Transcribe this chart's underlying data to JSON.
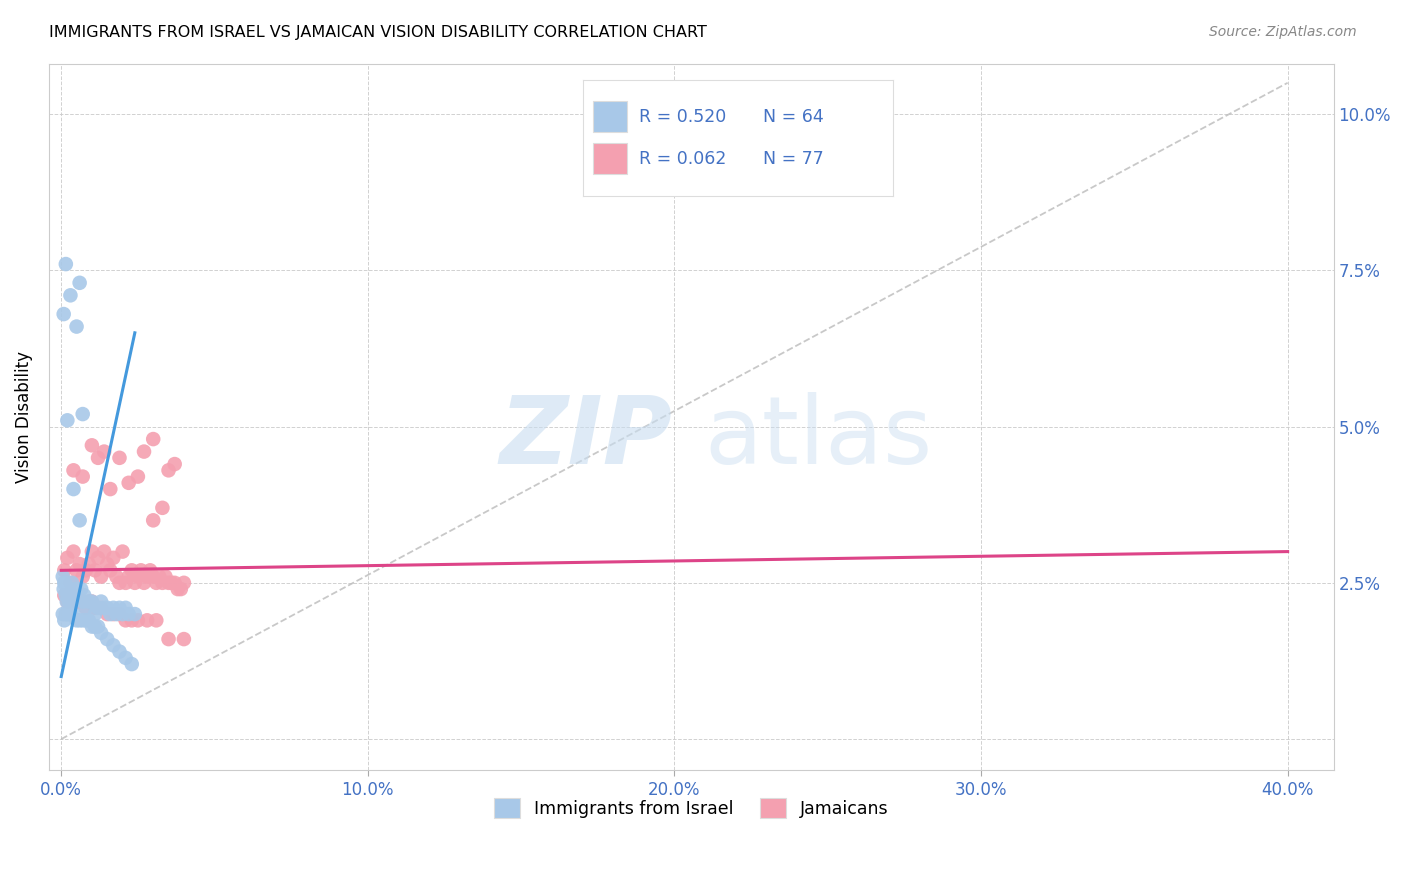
{
  "title": "IMMIGRANTS FROM ISRAEL VS JAMAICAN VISION DISABILITY CORRELATION CHART",
  "source": "Source: ZipAtlas.com",
  "ylabel": "Vision Disability",
  "ytick_vals": [
    0.0,
    0.025,
    0.05,
    0.075,
    0.1
  ],
  "xtick_vals": [
    0.0,
    0.1,
    0.2,
    0.3,
    0.4
  ],
  "xlim": [
    -0.004,
    0.415
  ],
  "ylim": [
    -0.005,
    0.108
  ],
  "blue_R": "0.520",
  "blue_N": "64",
  "pink_R": "0.062",
  "pink_N": "77",
  "blue_color": "#a8c8e8",
  "pink_color": "#f4a0b0",
  "blue_line_color": "#4499dd",
  "pink_line_color": "#dd4488",
  "dashed_line_color": "#bbbbbb",
  "legend_label_blue": "Immigrants from Israel",
  "legend_label_pink": "Jamaicans",
  "watermark_zip": "ZIP",
  "watermark_atlas": "atlas",
  "blue_scatter": [
    [
      0.0005,
      0.026
    ],
    [
      0.0008,
      0.024
    ],
    [
      0.001,
      0.025
    ],
    [
      0.0012,
      0.025
    ],
    [
      0.0015,
      0.023
    ],
    [
      0.0018,
      0.022
    ],
    [
      0.002,
      0.024
    ],
    [
      0.0022,
      0.023
    ],
    [
      0.0025,
      0.022
    ],
    [
      0.003,
      0.024
    ],
    [
      0.0032,
      0.023
    ],
    [
      0.0035,
      0.025
    ],
    [
      0.004,
      0.023
    ],
    [
      0.0042,
      0.022
    ],
    [
      0.005,
      0.024
    ],
    [
      0.0055,
      0.023
    ],
    [
      0.006,
      0.035
    ],
    [
      0.0065,
      0.024
    ],
    [
      0.007,
      0.022
    ],
    [
      0.0075,
      0.023
    ],
    [
      0.008,
      0.021
    ],
    [
      0.009,
      0.022
    ],
    [
      0.01,
      0.022
    ],
    [
      0.011,
      0.02
    ],
    [
      0.012,
      0.021
    ],
    [
      0.013,
      0.022
    ],
    [
      0.014,
      0.021
    ],
    [
      0.015,
      0.021
    ],
    [
      0.016,
      0.02
    ],
    [
      0.017,
      0.021
    ],
    [
      0.018,
      0.02
    ],
    [
      0.019,
      0.021
    ],
    [
      0.02,
      0.02
    ],
    [
      0.021,
      0.021
    ],
    [
      0.022,
      0.02
    ],
    [
      0.024,
      0.02
    ],
    [
      0.0005,
      0.02
    ],
    [
      0.001,
      0.019
    ],
    [
      0.0015,
      0.02
    ],
    [
      0.002,
      0.02
    ],
    [
      0.003,
      0.02
    ],
    [
      0.004,
      0.02
    ],
    [
      0.005,
      0.019
    ],
    [
      0.006,
      0.019
    ],
    [
      0.007,
      0.019
    ],
    [
      0.008,
      0.019
    ],
    [
      0.009,
      0.019
    ],
    [
      0.01,
      0.018
    ],
    [
      0.011,
      0.018
    ],
    [
      0.012,
      0.018
    ],
    [
      0.013,
      0.017
    ],
    [
      0.015,
      0.016
    ],
    [
      0.017,
      0.015
    ],
    [
      0.019,
      0.014
    ],
    [
      0.021,
      0.013
    ],
    [
      0.023,
      0.012
    ],
    [
      0.0008,
      0.068
    ],
    [
      0.002,
      0.051
    ],
    [
      0.004,
      0.04
    ],
    [
      0.0015,
      0.076
    ],
    [
      0.003,
      0.071
    ],
    [
      0.006,
      0.073
    ],
    [
      0.005,
      0.066
    ],
    [
      0.007,
      0.052
    ]
  ],
  "pink_scatter": [
    [
      0.001,
      0.027
    ],
    [
      0.002,
      0.029
    ],
    [
      0.003,
      0.025
    ],
    [
      0.004,
      0.03
    ],
    [
      0.005,
      0.027
    ],
    [
      0.006,
      0.028
    ],
    [
      0.007,
      0.026
    ],
    [
      0.008,
      0.027
    ],
    [
      0.009,
      0.028
    ],
    [
      0.01,
      0.03
    ],
    [
      0.011,
      0.027
    ],
    [
      0.012,
      0.029
    ],
    [
      0.013,
      0.026
    ],
    [
      0.014,
      0.03
    ],
    [
      0.015,
      0.028
    ],
    [
      0.016,
      0.027
    ],
    [
      0.017,
      0.029
    ],
    [
      0.018,
      0.026
    ],
    [
      0.019,
      0.025
    ],
    [
      0.02,
      0.03
    ],
    [
      0.021,
      0.025
    ],
    [
      0.022,
      0.026
    ],
    [
      0.023,
      0.027
    ],
    [
      0.024,
      0.025
    ],
    [
      0.025,
      0.026
    ],
    [
      0.026,
      0.027
    ],
    [
      0.027,
      0.025
    ],
    [
      0.028,
      0.026
    ],
    [
      0.029,
      0.027
    ],
    [
      0.03,
      0.026
    ],
    [
      0.031,
      0.025
    ],
    [
      0.032,
      0.026
    ],
    [
      0.033,
      0.025
    ],
    [
      0.034,
      0.026
    ],
    [
      0.035,
      0.025
    ],
    [
      0.036,
      0.025
    ],
    [
      0.037,
      0.025
    ],
    [
      0.038,
      0.024
    ],
    [
      0.039,
      0.024
    ],
    [
      0.04,
      0.025
    ],
    [
      0.001,
      0.023
    ],
    [
      0.002,
      0.022
    ],
    [
      0.003,
      0.023
    ],
    [
      0.004,
      0.023
    ],
    [
      0.005,
      0.022
    ],
    [
      0.006,
      0.022
    ],
    [
      0.007,
      0.022
    ],
    [
      0.008,
      0.021
    ],
    [
      0.009,
      0.022
    ],
    [
      0.01,
      0.022
    ],
    [
      0.011,
      0.021
    ],
    [
      0.013,
      0.021
    ],
    [
      0.015,
      0.02
    ],
    [
      0.017,
      0.02
    ],
    [
      0.019,
      0.02
    ],
    [
      0.021,
      0.019
    ],
    [
      0.023,
      0.019
    ],
    [
      0.025,
      0.019
    ],
    [
      0.028,
      0.019
    ],
    [
      0.031,
      0.019
    ],
    [
      0.004,
      0.043
    ],
    [
      0.007,
      0.042
    ],
    [
      0.01,
      0.047
    ],
    [
      0.012,
      0.045
    ],
    [
      0.014,
      0.046
    ],
    [
      0.016,
      0.04
    ],
    [
      0.019,
      0.045
    ],
    [
      0.022,
      0.041
    ],
    [
      0.025,
      0.042
    ],
    [
      0.027,
      0.046
    ],
    [
      0.03,
      0.048
    ],
    [
      0.035,
      0.043
    ],
    [
      0.03,
      0.035
    ],
    [
      0.033,
      0.037
    ],
    [
      0.037,
      0.044
    ],
    [
      0.04,
      0.016
    ],
    [
      0.035,
      0.016
    ]
  ],
  "blue_trendline_data": [
    [
      0.0,
      0.01
    ],
    [
      0.024,
      0.065
    ]
  ],
  "pink_trendline_data": [
    [
      0.0,
      0.027
    ],
    [
      0.4,
      0.03
    ]
  ],
  "dashed_line_data": [
    [
      0.0,
      0.0
    ],
    [
      0.4,
      0.105
    ]
  ]
}
